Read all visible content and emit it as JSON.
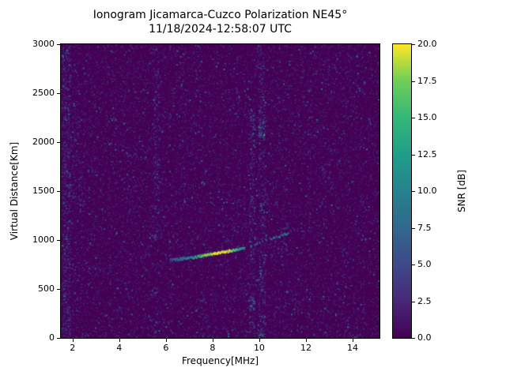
{
  "chart_data": {
    "type": "heatmap",
    "title": "Ionogram Jicamarca-Cuzco Polarization NE45°",
    "subtitle": "11/18/2024-12:58:07 UTC",
    "xlabel": "Frequency[MHz]",
    "ylabel": "Virtual Distance[Km]",
    "colorbar_label": "SNR [dB]",
    "x_range": [
      1.5,
      15.15
    ],
    "y_range": [
      0,
      3000
    ],
    "snr_range": [
      0,
      20
    ],
    "x_ticks": [
      2,
      4,
      6,
      8,
      10,
      12,
      14
    ],
    "y_ticks": [
      0,
      500,
      1000,
      1500,
      2000,
      2500,
      3000
    ],
    "colorbar_tick_values": [
      0.0,
      2.5,
      5.0,
      7.5,
      10.0,
      12.5,
      15.0,
      17.5,
      20.0
    ],
    "colorbar_tick_labels": [
      "0.0",
      "2.5",
      "5.0",
      "7.5",
      "10.0",
      "12.5",
      "15.0",
      "17.5",
      "20.0"
    ],
    "colormap": "viridis",
    "colormap_stops": [
      [
        0.0,
        "#440154"
      ],
      [
        0.125,
        "#482878"
      ],
      [
        0.25,
        "#3e4a89"
      ],
      [
        0.375,
        "#31688e"
      ],
      [
        0.5,
        "#26828e"
      ],
      [
        0.625,
        "#1f9e89"
      ],
      [
        0.75,
        "#35b779"
      ],
      [
        0.875,
        "#6ece58"
      ],
      [
        1.0,
        "#fde725"
      ]
    ],
    "plot_background_snr": 0,
    "figure_background": "#ffffff",
    "noise": {
      "seed": 42,
      "speckle_count": 26000,
      "mean_snr": 2.0,
      "max_snr": 9
    },
    "noise_bands": [
      {
        "f_min": 1.55,
        "f_max": 1.9,
        "h_min": 0,
        "h_max": 3000,
        "density": 0.5,
        "mean_snr": 3.0,
        "max_snr": 9
      },
      {
        "f_min": 1.9,
        "f_max": 2.3,
        "h_min": 1100,
        "h_max": 3000,
        "density": 0.18,
        "mean_snr": 2.5,
        "max_snr": 8
      },
      {
        "f_min": 2.25,
        "f_max": 2.45,
        "h_min": 1300,
        "h_max": 1700,
        "density": 0.22,
        "mean_snr": 2.8,
        "max_snr": 7
      },
      {
        "f_min": 4.3,
        "f_max": 4.45,
        "h_min": 300,
        "h_max": 2900,
        "density": 0.09,
        "mean_snr": 2.2,
        "max_snr": 6
      },
      {
        "f_min": 5.45,
        "f_max": 5.7,
        "h_min": 1000,
        "h_max": 2850,
        "density": 0.28,
        "mean_snr": 3.0,
        "max_snr": 8
      },
      {
        "f_min": 5.5,
        "f_max": 5.65,
        "h_min": 150,
        "h_max": 600,
        "density": 0.15,
        "mean_snr": 2.5,
        "max_snr": 6
      },
      {
        "f_min": 6.55,
        "f_max": 6.7,
        "h_min": 1500,
        "h_max": 2900,
        "density": 0.09,
        "mean_snr": 2.2,
        "max_snr": 6
      },
      {
        "f_min": 9.55,
        "f_max": 9.8,
        "h_min": 50,
        "h_max": 2400,
        "density": 0.32,
        "mean_snr": 3.2,
        "max_snr": 9
      },
      {
        "f_min": 9.95,
        "f_max": 10.25,
        "h_min": 0,
        "h_max": 3000,
        "density": 0.3,
        "mean_snr": 3.2,
        "max_snr": 9
      },
      {
        "f_min": 9.95,
        "f_max": 10.2,
        "h_min": 2050,
        "h_max": 2250,
        "density": 0.85,
        "mean_snr": 6.0,
        "max_snr": 16
      },
      {
        "f_min": 9.6,
        "f_max": 9.78,
        "h_min": 2150,
        "h_max": 2320,
        "density": 0.5,
        "mean_snr": 4.5,
        "max_snr": 12
      },
      {
        "f_min": 9.9,
        "f_max": 10.15,
        "h_min": 10,
        "h_max": 90,
        "density": 0.8,
        "mean_snr": 6.0,
        "max_snr": 14
      },
      {
        "f_min": 9.58,
        "f_max": 9.75,
        "h_min": 280,
        "h_max": 430,
        "density": 0.45,
        "mean_snr": 4.0,
        "max_snr": 10
      },
      {
        "f_min": 10.9,
        "f_max": 11.15,
        "h_min": 850,
        "h_max": 1250,
        "density": 0.2,
        "mean_snr": 2.8,
        "max_snr": 7
      },
      {
        "f_min": 12.05,
        "f_max": 12.2,
        "h_min": 900,
        "h_max": 2400,
        "density": 0.09,
        "mean_snr": 2.2,
        "max_snr": 6
      },
      {
        "f_min": 13.55,
        "f_max": 13.7,
        "h_min": 1800,
        "h_max": 2600,
        "density": 0.08,
        "mean_snr": 2.2,
        "max_snr": 6
      },
      {
        "f_min": 14.4,
        "f_max": 14.55,
        "h_min": 200,
        "h_max": 1500,
        "density": 0.07,
        "mean_snr": 2.2,
        "max_snr": 6
      },
      {
        "f_min": 1.6,
        "f_max": 15.1,
        "h_min": 0,
        "h_max": 45,
        "density": 0.07,
        "mean_snr": 3.5,
        "max_snr": 10
      }
    ],
    "echo_trace": {
      "description": "F-region oblique echo trace, virtual distance rising with frequency",
      "segments": [
        {
          "points": [
            [
              6.15,
              795
            ],
            [
              6.7,
              808
            ],
            [
              7.2,
              825
            ],
            [
              7.7,
              848
            ],
            [
              8.2,
              866
            ],
            [
              8.7,
              888
            ],
            [
              9.1,
              905
            ],
            [
              9.35,
              920
            ]
          ],
          "snr": [
            5,
            8,
            12,
            18,
            20,
            19,
            13,
            9
          ],
          "sparse": false
        },
        {
          "points": [
            [
              9.5,
              935
            ],
            [
              10.0,
              970
            ],
            [
              10.5,
              1015
            ],
            [
              11.2,
              1065
            ]
          ],
          "snr": [
            7,
            7,
            8,
            8
          ],
          "sparse": true
        }
      ]
    }
  }
}
